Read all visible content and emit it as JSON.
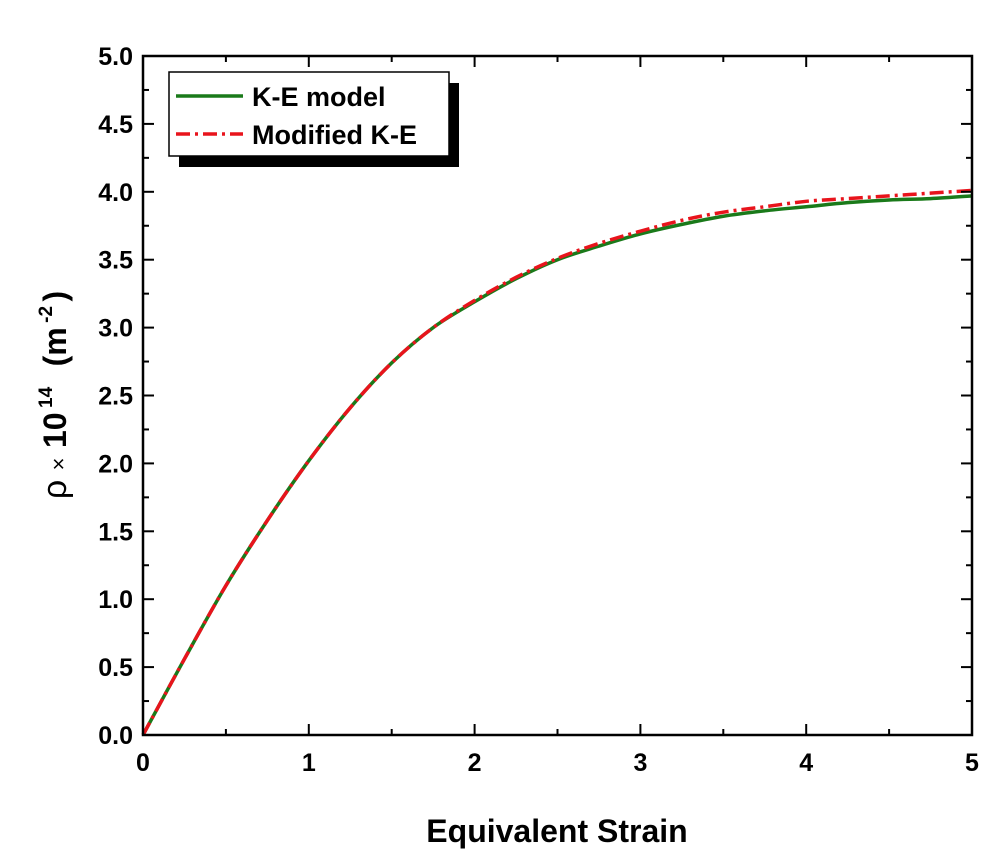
{
  "chart_data": {
    "type": "line",
    "title": "",
    "xlabel": "Equivalent Strain",
    "ylabel": {
      "symbol": "ρ",
      "times": "×",
      "base": "10",
      "exponent": "14",
      "unit_open": "(m",
      "unit_exponent": "-2",
      "unit_close": ")"
    },
    "xlim": [
      0,
      5
    ],
    "ylim": [
      0,
      5
    ],
    "xticks": [
      0,
      1,
      2,
      3,
      4,
      5
    ],
    "xtick_labels": [
      "0",
      "1",
      "2",
      "3",
      "4",
      "5"
    ],
    "yticks": [
      0,
      0.5,
      1,
      1.5,
      2,
      2.5,
      3,
      3.5,
      4,
      4.5,
      5
    ],
    "ytick_labels": [
      "0.0",
      "0.5",
      "1.0",
      "1.5",
      "2.0",
      "2.5",
      "3.0",
      "3.5",
      "4.0",
      "4.5",
      "5.0"
    ],
    "grid": false,
    "legend_position": "top-left",
    "x": [
      0,
      0.25,
      0.5,
      0.75,
      1.0,
      1.25,
      1.5,
      1.75,
      2.0,
      2.25,
      2.5,
      2.75,
      3.0,
      3.25,
      3.5,
      3.75,
      4.0,
      4.25,
      4.5,
      4.75,
      5.0
    ],
    "series": [
      {
        "name": "K-E model",
        "color": "#1a7a1a",
        "style": "solid",
        "values": [
          0,
          0.56,
          1.1,
          1.58,
          2.02,
          2.41,
          2.74,
          3.0,
          3.19,
          3.36,
          3.5,
          3.6,
          3.69,
          3.76,
          3.82,
          3.86,
          3.89,
          3.92,
          3.94,
          3.95,
          3.97
        ]
      },
      {
        "name": "Modified K-E",
        "color": "#e8141c",
        "style": "dash-dot",
        "values": [
          0,
          0.56,
          1.1,
          1.58,
          2.02,
          2.41,
          2.74,
          3.0,
          3.2,
          3.37,
          3.51,
          3.62,
          3.71,
          3.79,
          3.85,
          3.89,
          3.93,
          3.95,
          3.97,
          3.99,
          4.01
        ]
      }
    ]
  }
}
